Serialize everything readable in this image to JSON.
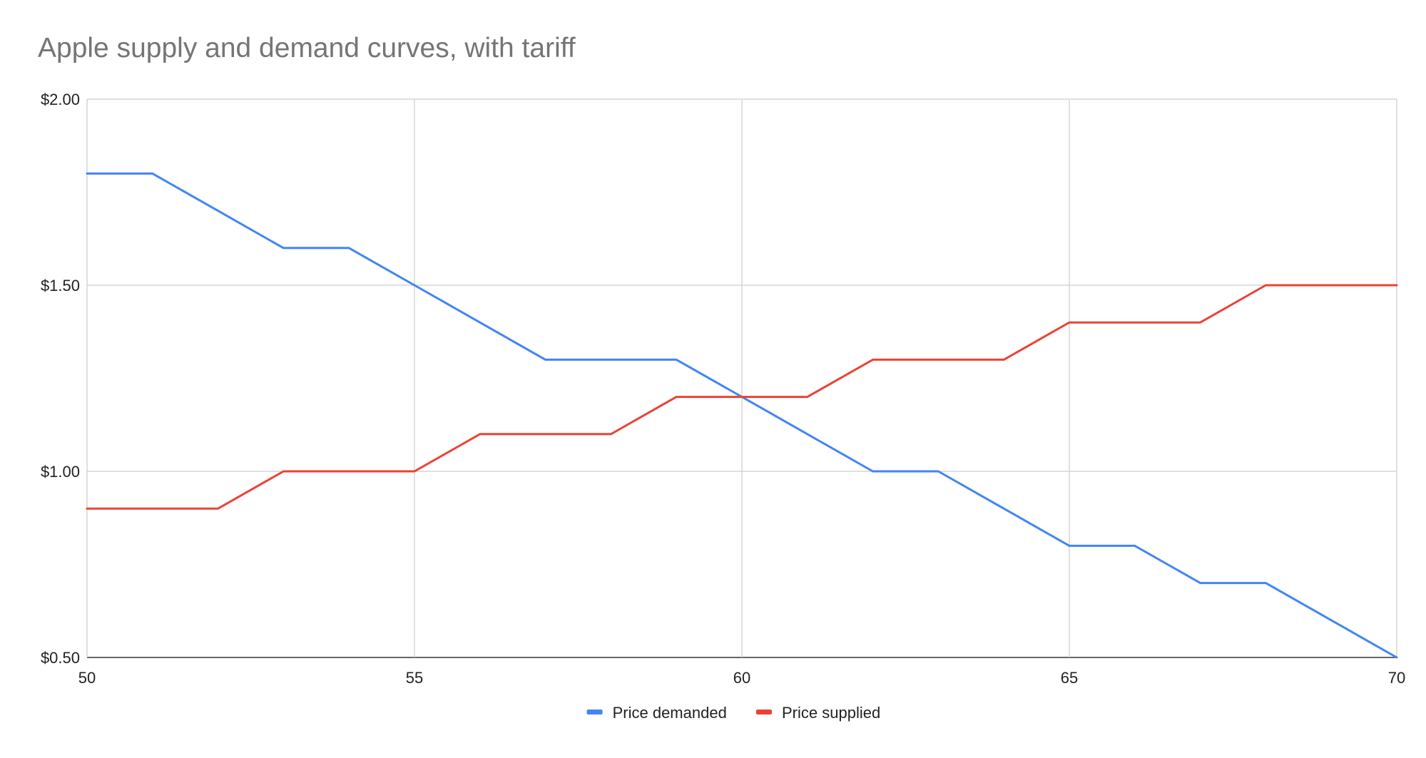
{
  "chart_data": {
    "type": "line",
    "title": "Apple supply and demand curves, with tariff",
    "xlabel": "",
    "ylabel": "",
    "xlim": [
      50,
      70
    ],
    "ylim": [
      0.5,
      2.0
    ],
    "x_ticks": [
      50,
      55,
      60,
      65,
      70
    ],
    "x_tick_labels": [
      "50",
      "55",
      "60",
      "65",
      "70"
    ],
    "y_ticks": [
      0.5,
      1.0,
      1.5,
      2.0
    ],
    "y_tick_labels": [
      "$0.50",
      "$1.00",
      "$1.50",
      "$2.00"
    ],
    "grid": true,
    "legend_position": "bottom",
    "x": [
      50,
      51,
      52,
      53,
      54,
      55,
      56,
      57,
      58,
      59,
      60,
      61,
      62,
      63,
      64,
      65,
      66,
      67,
      68,
      69,
      70
    ],
    "series": [
      {
        "name": "Price demanded",
        "color": "#4285f4",
        "values": [
          1.8,
          1.8,
          1.7,
          1.6,
          1.6,
          1.5,
          1.4,
          1.3,
          1.3,
          1.3,
          1.2,
          1.1,
          1.0,
          1.0,
          0.9,
          0.8,
          0.8,
          0.7,
          0.7,
          0.6,
          0.5
        ]
      },
      {
        "name": "Price supplied",
        "color": "#ea4335",
        "values": [
          0.9,
          0.9,
          0.9,
          1.0,
          1.0,
          1.0,
          1.1,
          1.1,
          1.1,
          1.2,
          1.2,
          1.2,
          1.3,
          1.3,
          1.3,
          1.4,
          1.4,
          1.4,
          1.5,
          1.5,
          1.5
        ]
      }
    ]
  }
}
